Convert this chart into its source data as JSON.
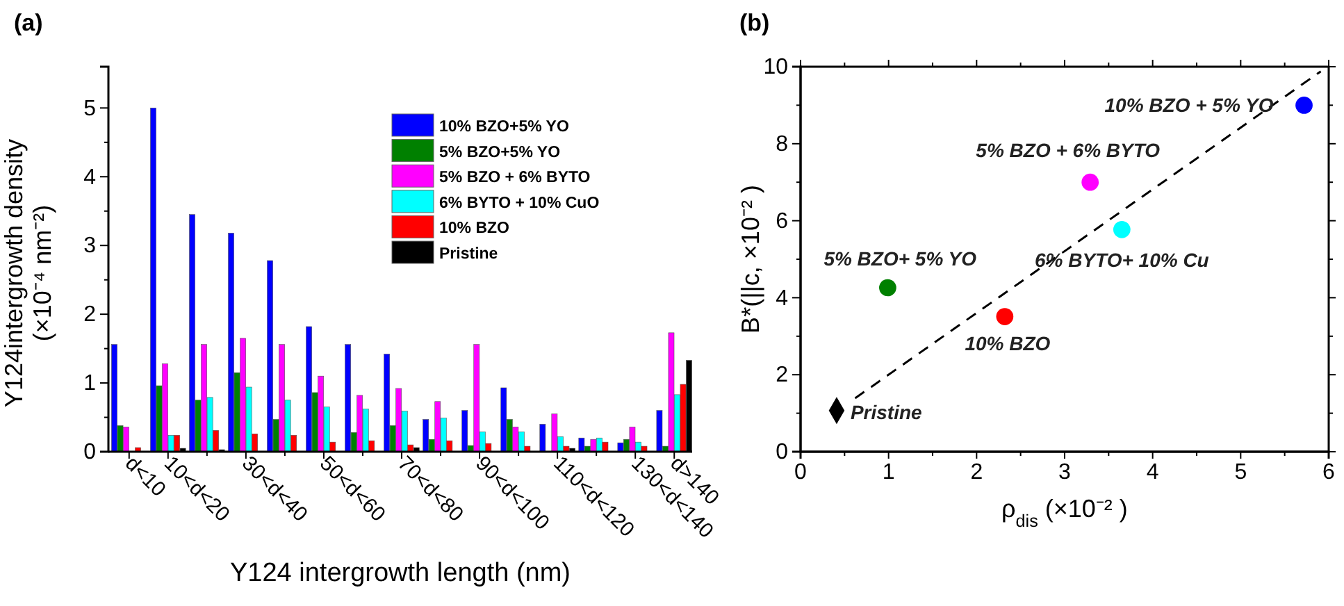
{
  "chart_data": [
    {
      "type": "bar",
      "title": "(a)",
      "xlabel": "Y124 intergrowth length (nm)",
      "ylabel": "Y124intergrowth density\n(×10⁻⁴ nm⁻²)",
      "categories": [
        "d<10",
        "10<d<20",
        null,
        "30<d<40",
        null,
        "50<d<60",
        null,
        "70<d<80",
        null,
        "90<d<100",
        null,
        "110<d<120",
        null,
        "130<d<140",
        "d>140"
      ],
      "series": [
        {
          "name": "10% BZO+5% YO",
          "color": "#0000ff",
          "values": [
            1.56,
            5.0,
            3.45,
            3.18,
            2.78,
            1.82,
            1.56,
            1.42,
            0.47,
            0.6,
            0.93,
            0.4,
            0.2,
            0.13,
            0.6
          ]
        },
        {
          "name": "5% BZO+5% YO",
          "color": "#008000",
          "values": [
            0.38,
            0.96,
            0.75,
            1.15,
            0.47,
            0.86,
            0.28,
            0.38,
            0.18,
            0.09,
            0.47,
            0,
            0.08,
            0.18,
            0.08
          ]
        },
        {
          "name": "5% BZO + 6% BYTO",
          "color": "#ff00ff",
          "values": [
            0.36,
            1.28,
            1.56,
            1.65,
            1.56,
            1.1,
            0.82,
            0.92,
            0.73,
            1.56,
            0.36,
            0.55,
            0.18,
            0.36,
            1.73
          ]
        },
        {
          "name": "6% BYTO + 10% CuO",
          "color": "#00ffff",
          "values": [
            0,
            0.24,
            0.79,
            0.94,
            0.75,
            0.65,
            0.62,
            0.59,
            0.49,
            0.29,
            0.29,
            0.22,
            0.2,
            0.14,
            0.83
          ]
        },
        {
          "name": "10% BZO",
          "color": "#ff0000",
          "values": [
            0.06,
            0.24,
            0.31,
            0.26,
            0.24,
            0.14,
            0.16,
            0.1,
            0.16,
            0.12,
            0.08,
            0.08,
            0.14,
            0.08,
            0.98
          ]
        },
        {
          "name": "Pristine",
          "color": "#000000",
          "values": [
            0,
            0.05,
            0.03,
            null,
            0,
            null,
            0,
            0.06,
            null,
            0,
            0,
            0.05,
            0,
            0,
            1.33
          ]
        }
      ],
      "ylim": [
        0,
        5.6
      ],
      "yticks": [
        0,
        {
          "value": 0.5,
          "label": null
        },
        1,
        {
          "value": 1.5,
          "label": null
        },
        2,
        {
          "value": 2.5,
          "label": null
        },
        3,
        {
          "value": 3.5,
          "label": null
        },
        4,
        {
          "value": 4.5,
          "label": null
        },
        5
      ],
      "legend": "top right"
    },
    {
      "type": "scatter",
      "title": "(b)",
      "xlabel": "ρ$_{dis}$ (×10⁻² )",
      "ylabel": "B*(||c, ×10⁻² )",
      "series": [
        {
          "name": "10% BZO + 5% YO",
          "color": "#0000ff",
          "marker": "circle",
          "x": [
            5.72
          ],
          "values": [
            9.0
          ]
        },
        {
          "name": "5% BZO + 6% BYTO",
          "color": "#ff00ff",
          "marker": "circle",
          "x": [
            3.29
          ],
          "values": [
            7.0
          ]
        },
        {
          "name": "6% BYTO+ 10% Cu",
          "color": "#00ffff",
          "marker": "circle",
          "x": [
            3.65
          ],
          "values": [
            5.77
          ]
        },
        {
          "name": "5% BZO+ 5% YO",
          "color": "#008000",
          "marker": "circle",
          "x": [
            0.99
          ],
          "values": [
            4.26
          ]
        },
        {
          "name": "10% BZO",
          "color": "#ff0000",
          "marker": "circle",
          "x": [
            2.32
          ],
          "values": [
            3.51
          ]
        },
        {
          "name": "Pristine",
          "color": "#000000",
          "marker": "diamond",
          "x": [
            0.41
          ],
          "values": [
            1.07
          ]
        },
        {
          "type": "line",
          "color": "#000000",
          "line_style": "dashed",
          "x": [
            0.62,
            5.91
          ],
          "values": [
            1.39,
            9.88
          ]
        }
      ],
      "xlim": [
        0,
        6
      ],
      "xticks": [
        0,
        {
          "value": 0.5,
          "label": null
        },
        1,
        {
          "value": 1.5,
          "label": null
        },
        2,
        {
          "value": 2.5,
          "label": null
        },
        3,
        {
          "value": 3.5,
          "label": null
        },
        4,
        {
          "value": 4.5,
          "label": null
        },
        5,
        {
          "value": 5.5,
          "label": null
        },
        6
      ],
      "ylim": [
        0,
        10
      ],
      "yticks": [
        0,
        {
          "value": 1,
          "label": null
        },
        2,
        {
          "value": 3,
          "label": null
        },
        4,
        {
          "value": 5,
          "label": null
        },
        6,
        {
          "value": 7,
          "label": null
        },
        8,
        {
          "value": 9,
          "label": null
        },
        10
      ]
    }
  ]
}
